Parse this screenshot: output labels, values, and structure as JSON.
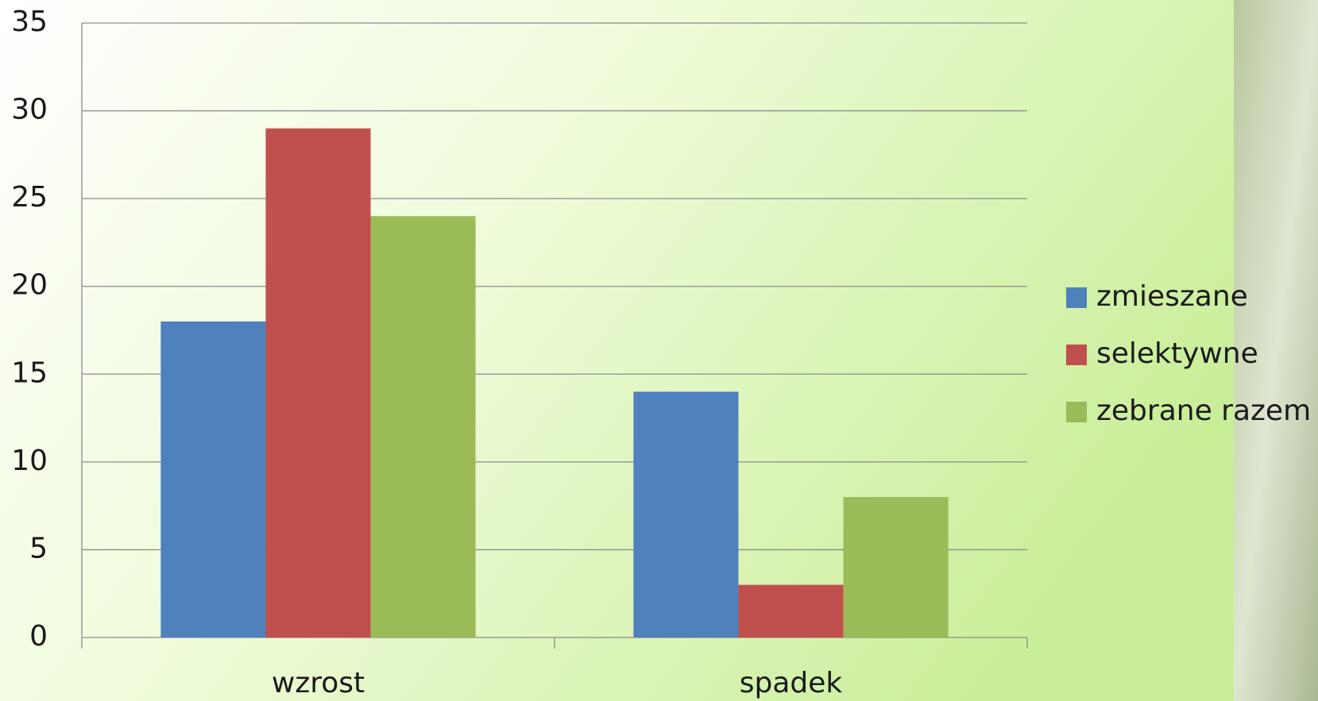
{
  "chart_data": {
    "type": "bar",
    "categories": [
      "wzrost",
      "spadek"
    ],
    "series": [
      {
        "name": "zmieszane",
        "color": "#4f81bd",
        "values": [
          18,
          14
        ]
      },
      {
        "name": "selektywne",
        "color": "#c0504d",
        "values": [
          29,
          3
        ]
      },
      {
        "name": "zebrane razem",
        "color": "#9bbb59",
        "values": [
          24,
          8
        ]
      }
    ],
    "ylim": [
      0,
      35
    ],
    "yticks": [
      0,
      5,
      10,
      15,
      20,
      25,
      30,
      35
    ],
    "grid": true,
    "legend": "right"
  }
}
